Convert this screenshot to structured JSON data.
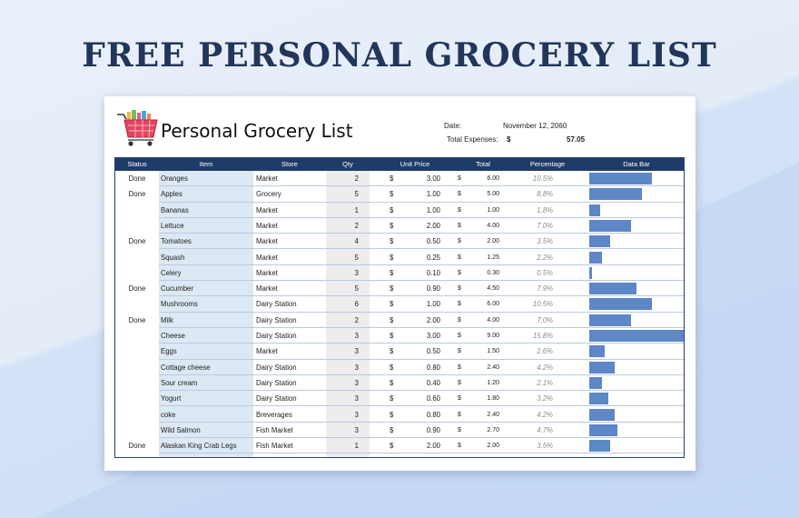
{
  "banner": "FREE PERSONAL GROCERY LIST",
  "sheet": {
    "title": "Personal Grocery List",
    "date_label": "Date:",
    "date_value": "November 12, 2060",
    "total_label": "Total Expenses:",
    "total_currency": "$",
    "total_value": "57.05"
  },
  "columns": [
    "Status",
    "Item",
    "Store",
    "Qty",
    "Unit Price",
    "Total",
    "Percentage",
    "Data Bar"
  ],
  "colors": {
    "header": "#1f3b68",
    "bar": "#5d87c6",
    "banner": "#22365a",
    "item_col": "#dde8f5",
    "qty_col": "#ededed"
  },
  "rows": [
    {
      "status": "Done",
      "item": "Oranges",
      "store": "Market",
      "qty": "2",
      "cur": "$",
      "unit": "3.00",
      "tcur": "$",
      "total": "6.00",
      "pct": "10.5%",
      "bar": 10.5
    },
    {
      "status": "Done",
      "item": "Apples",
      "store": "Grocery",
      "qty": "5",
      "cur": "$",
      "unit": "1.00",
      "tcur": "$",
      "total": "5.00",
      "pct": "8.8%",
      "bar": 8.8
    },
    {
      "status": "",
      "item": "Bananas",
      "store": "Market",
      "qty": "1",
      "cur": "$",
      "unit": "1.00",
      "tcur": "$",
      "total": "1.00",
      "pct": "1.8%",
      "bar": 1.8
    },
    {
      "status": "",
      "item": "Lettuce",
      "store": "Market",
      "qty": "2",
      "cur": "$",
      "unit": "2.00",
      "tcur": "$",
      "total": "4.00",
      "pct": "7.0%",
      "bar": 7.0
    },
    {
      "status": "Done",
      "item": "Tomatoes",
      "store": "Market",
      "qty": "4",
      "cur": "$",
      "unit": "0.50",
      "tcur": "$",
      "total": "2.00",
      "pct": "3.5%",
      "bar": 3.5
    },
    {
      "status": "",
      "item": "Squash",
      "store": "Market",
      "qty": "5",
      "cur": "$",
      "unit": "0.25",
      "tcur": "$",
      "total": "1.25",
      "pct": "2.2%",
      "bar": 2.2
    },
    {
      "status": "",
      "item": "Celery",
      "store": "Market",
      "qty": "3",
      "cur": "$",
      "unit": "0.10",
      "tcur": "$",
      "total": "0.30",
      "pct": "0.5%",
      "bar": 0.5
    },
    {
      "status": "Done",
      "item": "Cucumber",
      "store": "Market",
      "qty": "5",
      "cur": "$",
      "unit": "0.90",
      "tcur": "$",
      "total": "4.50",
      "pct": "7.9%",
      "bar": 7.9
    },
    {
      "status": "",
      "item": "Mushrooms",
      "store": "Dairy Station",
      "qty": "6",
      "cur": "$",
      "unit": "1.00",
      "tcur": "$",
      "total": "6.00",
      "pct": "10.5%",
      "bar": 10.5
    },
    {
      "status": "Done",
      "item": "Milk",
      "store": "Dairy Station",
      "qty": "2",
      "cur": "$",
      "unit": "2.00",
      "tcur": "$",
      "total": "4.00",
      "pct": "7.0%",
      "bar": 7.0
    },
    {
      "status": "",
      "item": "Cheese",
      "store": "Dairy Station",
      "qty": "3",
      "cur": "$",
      "unit": "3.00",
      "tcur": "$",
      "total": "9.00",
      "pct": "15.8%",
      "bar": 15.8
    },
    {
      "status": "",
      "item": "Eggs",
      "store": "Market",
      "qty": "3",
      "cur": "$",
      "unit": "0.50",
      "tcur": "$",
      "total": "1.50",
      "pct": "2.6%",
      "bar": 2.6
    },
    {
      "status": "",
      "item": "Cottage cheese",
      "store": "Dairy Station",
      "qty": "3",
      "cur": "$",
      "unit": "0.80",
      "tcur": "$",
      "total": "2.40",
      "pct": "4.2%",
      "bar": 4.2
    },
    {
      "status": "",
      "item": "Sour cream",
      "store": "Dairy Station",
      "qty": "3",
      "cur": "$",
      "unit": "0.40",
      "tcur": "$",
      "total": "1.20",
      "pct": "2.1%",
      "bar": 2.1
    },
    {
      "status": "",
      "item": "Yogurt",
      "store": "Dairy Station",
      "qty": "3",
      "cur": "$",
      "unit": "0.60",
      "tcur": "$",
      "total": "1.80",
      "pct": "3.2%",
      "bar": 3.2
    },
    {
      "status": "",
      "item": "coke",
      "store": "Breverages",
      "qty": "3",
      "cur": "$",
      "unit": "0.80",
      "tcur": "$",
      "total": "2.40",
      "pct": "4.2%",
      "bar": 4.2
    },
    {
      "status": "",
      "item": "Wild Salmon",
      "store": "Fish Market",
      "qty": "3",
      "cur": "$",
      "unit": "0.90",
      "tcur": "$",
      "total": "2.70",
      "pct": "4.7%",
      "bar": 4.7
    },
    {
      "status": "Done",
      "item": "Alaskan King Crab Legs",
      "store": "Fish Market",
      "qty": "1",
      "cur": "$",
      "unit": "2.00",
      "tcur": "$",
      "total": "2.00",
      "pct": "3.5%",
      "bar": 3.5
    }
  ]
}
